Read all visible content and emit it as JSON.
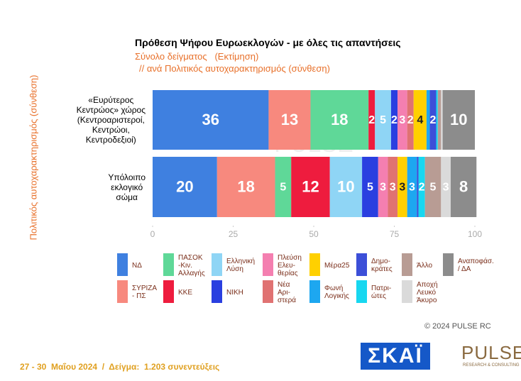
{
  "chart_data": {
    "type": "stacked_barh",
    "title": "Πρόθεση Ψήφου Ευρωεκλογών - με όλες τις απαντήσεις",
    "subtitle": "Σύνολο δείγματος   (Εκτίμηση)",
    "subtitle2": "// ανά Πολιτικός αυτοχαρακτηρισμός (σύνθεση)",
    "ylabel": "Πολιτικός αυτοχαρακτηρισμός (σύνθεση)",
    "watermark": "PULSE",
    "categories": [
      "«Ευρύτερος\nΚεντρώος» χώρος\n(Κεντροαριστεροί,\nΚεντρώοι,\nΚεντροδεξιοί)",
      "Υπόλοιπο\nεκλογικό\nσώμα"
    ],
    "xlim": [
      0,
      100
    ],
    "xticks": [
      0,
      25,
      50,
      75,
      100
    ],
    "series": [
      {
        "name": "ΝΔ",
        "color": "#3f80e0",
        "values": [
          36,
          20
        ]
      },
      {
        "name": "ΣΥΡΙΖΑ\n- ΠΣ",
        "color": "#f7897e",
        "values": [
          13,
          18
        ]
      },
      {
        "name": "ΠΑΣΟΚ\n-Κιν.\nΑλλαγής",
        "color": "#5fd898",
        "values": [
          18,
          5
        ]
      },
      {
        "name": "ΚΚΕ",
        "color": "#ee1c3e",
        "values": [
          2,
          12
        ]
      },
      {
        "name": "Ελληνική\nΛύση",
        "color": "#8fd5f5",
        "values": [
          5,
          10
        ]
      },
      {
        "name": "ΝΙΚΗ",
        "color": "#2a3fe0",
        "values": [
          2,
          5
        ]
      },
      {
        "name": "Πλεύση\nΕλευ-\nθερίας",
        "color": "#f47fb0",
        "values": [
          3,
          3
        ]
      },
      {
        "name": "Νέα\nΑρι-\nστερά",
        "color": "#e07272",
        "values": [
          2,
          3
        ]
      },
      {
        "name": "Μέρα25",
        "color": "#ffd000",
        "values": [
          4,
          3
        ]
      },
      {
        "name": "Φωνή\nΛογικής",
        "color": "#1da7f0",
        "values": [
          1,
          3
        ]
      },
      {
        "name": "Δημο-\nκράτες",
        "color": "#3c4fd8",
        "values": [
          2,
          0.5
        ]
      },
      {
        "name": "Πατρι-\nώτες",
        "color": "#17d7f0",
        "values": [
          0.5,
          2
        ]
      },
      {
        "name": "Άλλο",
        "color": "#b89c94",
        "values": [
          1,
          5
        ]
      },
      {
        "name": "Αποχή\nΛευκό\nΆκυρο",
        "color": "#dadada",
        "values": [
          0.5,
          3
        ]
      },
      {
        "name": "Αναποφάσ.\n/ ΔΑ",
        "color": "#8c8c8c",
        "values": [
          10,
          8
        ]
      }
    ],
    "copyright": "© 2024 PULSE RC",
    "footer": "27 - 30  Μαΐου 2024  /  Δείγμα:  1.203 συνεντεύξεις",
    "logo_left": "ΣΚΑΪ",
    "logo_right": "PULSE",
    "logo_right_sub": "RESEARCH & CONSULTING"
  }
}
